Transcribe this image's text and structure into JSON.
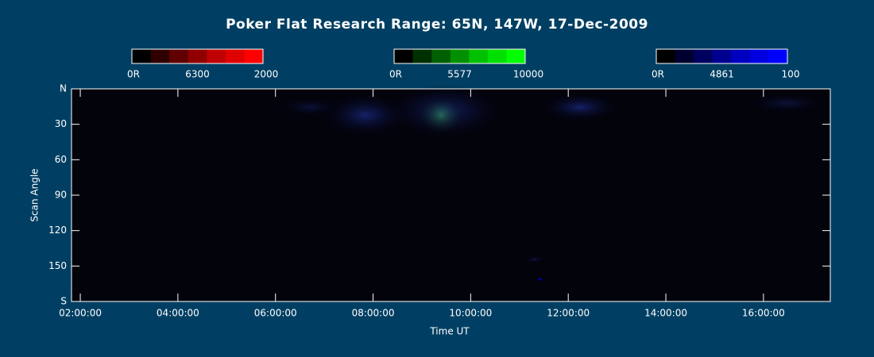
{
  "chart_data": {
    "type": "keogram",
    "title": "Poker Flat Research Range: 65N, 147W, 17-Dec-2009",
    "x_label": "Time UT",
    "y_label": "Scan Angle",
    "xlim": [
      1.82,
      17.37
    ],
    "xticks": [
      {
        "value": 2,
        "label": "02:00:00"
      },
      {
        "value": 4,
        "label": "04:00:00"
      },
      {
        "value": 6,
        "label": "06:00:00"
      },
      {
        "value": 8,
        "label": "08:00:00"
      },
      {
        "value": 10,
        "label": "10:00:00"
      },
      {
        "value": 12,
        "label": "12:00:00"
      },
      {
        "value": 14,
        "label": "14:00:00"
      },
      {
        "value": 16,
        "label": "16:00:00"
      }
    ],
    "ylim": [
      0,
      180
    ],
    "yticks": [
      {
        "value": 0,
        "label": "N"
      },
      30,
      60,
      90,
      120,
      150,
      {
        "value": 180,
        "label": "S"
      }
    ],
    "colorbars": [
      {
        "min_label": "0R",
        "wavelength": "6300",
        "max": 2000,
        "colors": [
          "#000000",
          "#300000",
          "#600000",
          "#900000",
          "#c00000",
          "#e00000",
          "#ff0000"
        ]
      },
      {
        "min_label": "0R",
        "wavelength": "5577",
        "max": 10000,
        "colors": [
          "#000000",
          "#003000",
          "#006000",
          "#009000",
          "#00c000",
          "#00e000",
          "#00ff00"
        ]
      },
      {
        "min_label": "0R",
        "wavelength": "4861",
        "max": 100,
        "colors": [
          "#000000",
          "#000030",
          "#000060",
          "#000090",
          "#0000c0",
          "#0000e0",
          "#0000ff"
        ]
      }
    ]
  }
}
